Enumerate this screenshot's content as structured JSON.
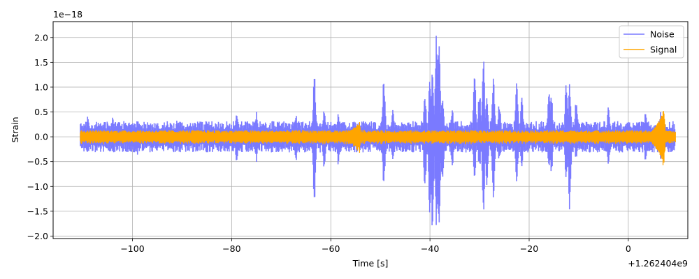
{
  "chart_data": {
    "type": "line",
    "title": "",
    "xlabel": "Time [s]",
    "ylabel": "Strain",
    "x_offset_label": "+1.262404e9",
    "y_scale_label": "1e−18",
    "xlim": [
      -116,
      12
    ],
    "ylim": [
      -2.05,
      2.32
    ],
    "x_ticks": [
      -100,
      -80,
      -60,
      -40,
      -20,
      0
    ],
    "x_tick_labels": [
      "−100",
      "−80",
      "−60",
      "−40",
      "−20",
      "0"
    ],
    "y_ticks": [
      -2.0,
      -1.5,
      -1.0,
      -0.5,
      0.0,
      0.5,
      1.0,
      1.5,
      2.0
    ],
    "y_tick_labels": [
      "−2.0",
      "−1.5",
      "−1.0",
      "−0.5",
      "0.0",
      "0.5",
      "1.0",
      "1.5",
      "2.0"
    ],
    "grid": true,
    "legend_position": "top-right",
    "series": [
      {
        "name": "Noise",
        "color": "#7a7aff",
        "x_range": [
          -110.5,
          9.5
        ],
        "baseline_amplitude": 0.3,
        "bursts": [
          {
            "x": -109,
            "max": 0.4,
            "min": -0.3
          },
          {
            "x": -104,
            "max": 0.4,
            "min": -0.3
          },
          {
            "x": -99,
            "max": 0.3,
            "min": -0.35
          },
          {
            "x": -91,
            "max": 0.35,
            "min": -0.3
          },
          {
            "x": -85,
            "max": 0.35,
            "min": -0.35
          },
          {
            "x": -79,
            "max": 0.5,
            "min": -0.55
          },
          {
            "x": -75,
            "max": 0.5,
            "min": -0.5
          },
          {
            "x": -67,
            "max": 0.45,
            "min": -0.5
          },
          {
            "x": -63.3,
            "max": 1.25,
            "min": -1.3
          },
          {
            "x": -61.3,
            "max": 0.6,
            "min": -0.7
          },
          {
            "x": -58.5,
            "max": 0.45,
            "min": -0.55
          },
          {
            "x": -49.3,
            "max": 1.2,
            "min": -1.0
          },
          {
            "x": -47.5,
            "max": 0.6,
            "min": -0.5
          },
          {
            "x": -41,
            "max": 0.85,
            "min": -1.05
          },
          {
            "x": -40,
            "max": 1.2,
            "min": -1.65
          },
          {
            "x": -39.5,
            "max": 1.3,
            "min": -1.85
          },
          {
            "x": -38.7,
            "max": 2.15,
            "min": -1.88
          },
          {
            "x": -38.2,
            "max": 1.85,
            "min": -1.75
          },
          {
            "x": -37.5,
            "max": 0.9,
            "min": -1.0
          },
          {
            "x": -35.5,
            "max": 0.6,
            "min": -0.65
          },
          {
            "x": -31,
            "max": 1.2,
            "min": -0.8
          },
          {
            "x": -30,
            "max": 1.0,
            "min": -0.7
          },
          {
            "x": -29.2,
            "max": 1.5,
            "min": -1.45
          },
          {
            "x": -28.5,
            "max": 0.8,
            "min": -1.0
          },
          {
            "x": -27.2,
            "max": 1.25,
            "min": -1.3
          },
          {
            "x": -26,
            "max": 0.7,
            "min": -0.5
          },
          {
            "x": -22.5,
            "max": 1.2,
            "min": -1.0
          },
          {
            "x": -21.5,
            "max": 0.8,
            "min": -0.6
          },
          {
            "x": -16,
            "max": 0.9,
            "min": -0.6
          },
          {
            "x": -15.5,
            "max": 0.8,
            "min": -0.7
          },
          {
            "x": -12.5,
            "max": 1.15,
            "min": -0.9
          },
          {
            "x": -11.8,
            "max": 1.05,
            "min": -1.45
          },
          {
            "x": -10.5,
            "max": 0.8,
            "min": -0.5
          },
          {
            "x": -4,
            "max": 0.6,
            "min": -0.55
          },
          {
            "x": 3.5,
            "max": 0.5,
            "min": -0.5
          },
          {
            "x": 6.5,
            "max": 0.5,
            "min": -0.45
          }
        ]
      },
      {
        "name": "Signal",
        "color": "#ffa500",
        "x_range": [
          -110.5,
          9.5
        ],
        "baseline_amplitude": 0.12,
        "chirps": [
          {
            "start": -62,
            "peak": -54.2,
            "peak_amplitude": 0.3
          },
          {
            "start": 1,
            "peak": 7.2,
            "peak_amplitude": 0.57
          }
        ]
      }
    ]
  }
}
